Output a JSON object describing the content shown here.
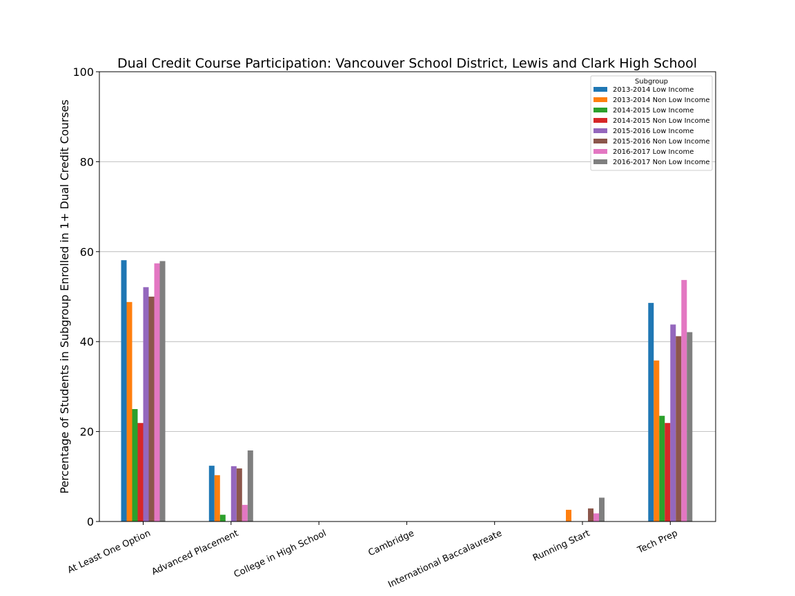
{
  "chart_data": {
    "type": "bar",
    "title": "Dual Credit Course Participation: Vancouver School District, Lewis and Clark High School",
    "xlabel": "",
    "ylabel": "Percentage of Students in Subgroup Enrolled in 1+ Dual Credit Courses",
    "ylim": [
      0,
      100
    ],
    "yticks": [
      "0",
      "20",
      "40",
      "60",
      "80",
      "100"
    ],
    "grid": "horizontal",
    "legend_title": "Subgroup",
    "legend_position": "top-right",
    "categories": [
      "At Least One Option",
      "Advanced Placement",
      "College in High School",
      "Cambridge",
      "International Baccalaureate",
      "Running Start",
      "Tech Prep"
    ],
    "series": [
      {
        "name": "2013-2014 Low Income",
        "color": "#1f77b4",
        "values": [
          58.1,
          12.4,
          0,
          0,
          0,
          0,
          48.6
        ]
      },
      {
        "name": "2013-2014 Non Low Income",
        "color": "#ff7f0e",
        "values": [
          48.8,
          10.3,
          0,
          0,
          0,
          2.6,
          35.8
        ]
      },
      {
        "name": "2014-2015 Low Income",
        "color": "#2ca02c",
        "values": [
          25.0,
          1.5,
          0,
          0,
          0,
          0,
          23.5
        ]
      },
      {
        "name": "2014-2015 Non Low Income",
        "color": "#d62728",
        "values": [
          21.9,
          0,
          0,
          0,
          0,
          0,
          21.9
        ]
      },
      {
        "name": "2015-2016 Low Income",
        "color": "#9467bd",
        "values": [
          52.1,
          12.3,
          0,
          0,
          0,
          0,
          43.8
        ]
      },
      {
        "name": "2015-2016 Non Low Income",
        "color": "#8c564b",
        "values": [
          50.0,
          11.8,
          0,
          0,
          0,
          2.9,
          41.2
        ]
      },
      {
        "name": "2016-2017 Low Income",
        "color": "#e377c2",
        "values": [
          57.4,
          3.7,
          0,
          0,
          0,
          1.8,
          53.7
        ]
      },
      {
        "name": "2016-2017 Non Low Income",
        "color": "#7f7f7f",
        "values": [
          57.9,
          15.8,
          0,
          0,
          0,
          5.3,
          42.1
        ]
      }
    ]
  }
}
